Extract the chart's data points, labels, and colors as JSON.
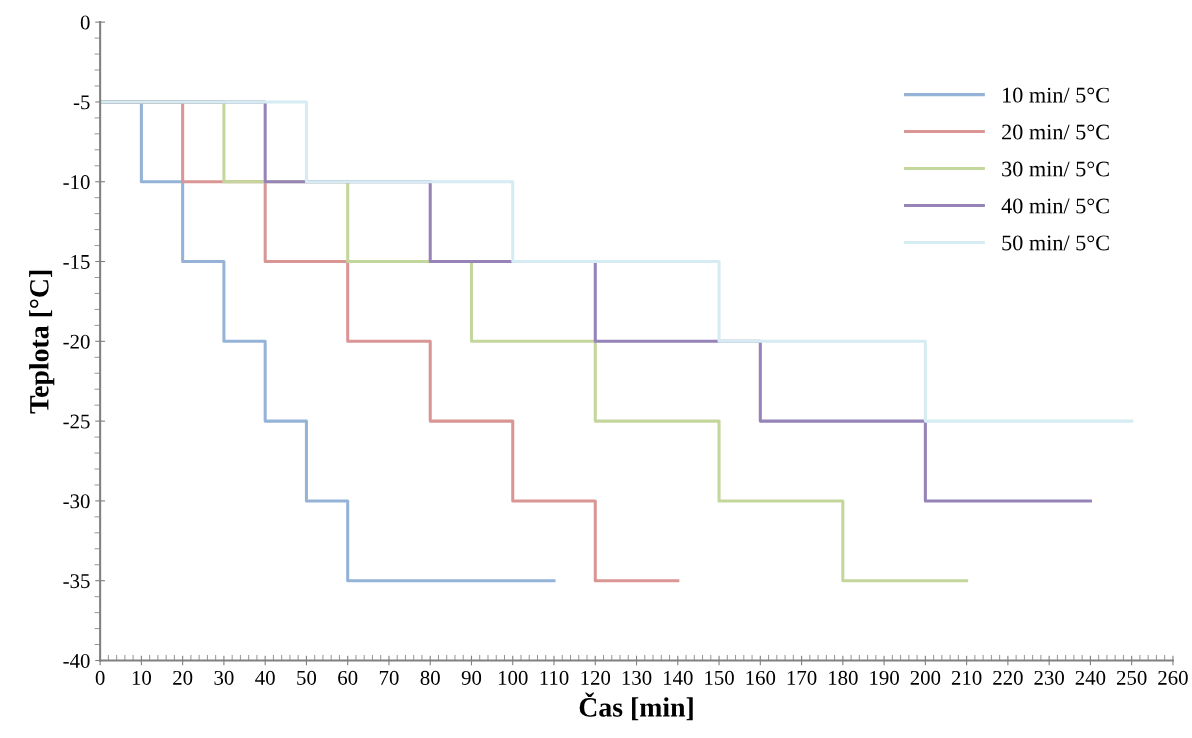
{
  "chart_data": {
    "type": "step",
    "xlabel": "Čas [min]",
    "ylabel": "Teplota [°C]",
    "xlim": [
      0,
      260
    ],
    "ylim": [
      -40,
      0
    ],
    "xticks": [
      0,
      10,
      20,
      30,
      40,
      50,
      60,
      70,
      80,
      90,
      100,
      110,
      120,
      130,
      140,
      150,
      160,
      170,
      180,
      190,
      200,
      210,
      220,
      230,
      240,
      250,
      260
    ],
    "yticks": [
      -40,
      -35,
      -30,
      -25,
      -20,
      -15,
      -10,
      -5,
      0
    ],
    "grid": false,
    "legend": "top right",
    "line_style": "solid",
    "series": [
      {
        "name": "10 min/ 5°C",
        "color": "#95b3d7",
        "x": [
          0,
          10,
          20,
          30,
          40,
          50,
          60,
          110
        ],
        "values": [
          -5,
          -10,
          -15,
          -20,
          -25,
          -30,
          -35,
          -35
        ]
      },
      {
        "name": "20 min/ 5°C",
        "color": "#d99694",
        "x": [
          0,
          20,
          40,
          60,
          80,
          100,
          120,
          140
        ],
        "values": [
          -5,
          -10,
          -15,
          -20,
          -25,
          -30,
          -35,
          -35
        ]
      },
      {
        "name": "30 min/ 5°C",
        "color": "#c3d69b",
        "x": [
          0,
          30,
          60,
          90,
          120,
          150,
          180,
          210
        ],
        "values": [
          -5,
          -10,
          -15,
          -20,
          -25,
          -30,
          -35,
          -35
        ]
      },
      {
        "name": "40 min/ 5°C",
        "color": "#9683b8",
        "x": [
          0,
          40,
          80,
          120,
          160,
          200,
          240
        ],
        "values": [
          -5,
          -10,
          -15,
          -20,
          -25,
          -30,
          -30
        ]
      },
      {
        "name": "50 min/ 5°C",
        "color": "#d4ecf2",
        "x": [
          0,
          50,
          100,
          150,
          200,
          250
        ],
        "values": [
          -5,
          -10,
          -15,
          -20,
          -25,
          -25
        ]
      }
    ]
  }
}
